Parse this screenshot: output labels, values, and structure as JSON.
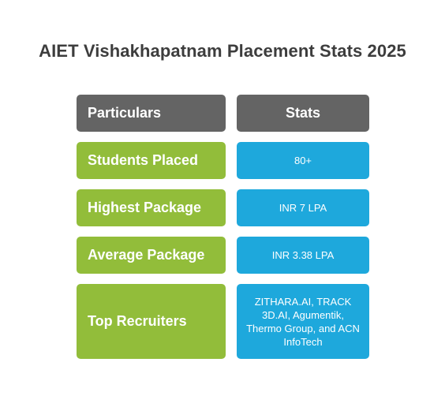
{
  "title": "AIET Vishakhapatnam Placement Stats 2025",
  "colors": {
    "header": "#646464",
    "label": "#92bd3a",
    "value": "#1ea8dc"
  },
  "table": {
    "header": {
      "particulars": "Particulars",
      "stats": "Stats"
    },
    "rows": [
      {
        "label": "Students Placed",
        "value": "80+"
      },
      {
        "label": "Highest Package",
        "value": "INR 7 LPA"
      },
      {
        "label": "Average Package",
        "value": "INR 3.38 LPA"
      },
      {
        "label": "Top Recruiters",
        "value": "ZITHARA.AI, TRACK 3D.AI, Agumentik, Thermo Group, and ACN InfoTech"
      }
    ]
  }
}
